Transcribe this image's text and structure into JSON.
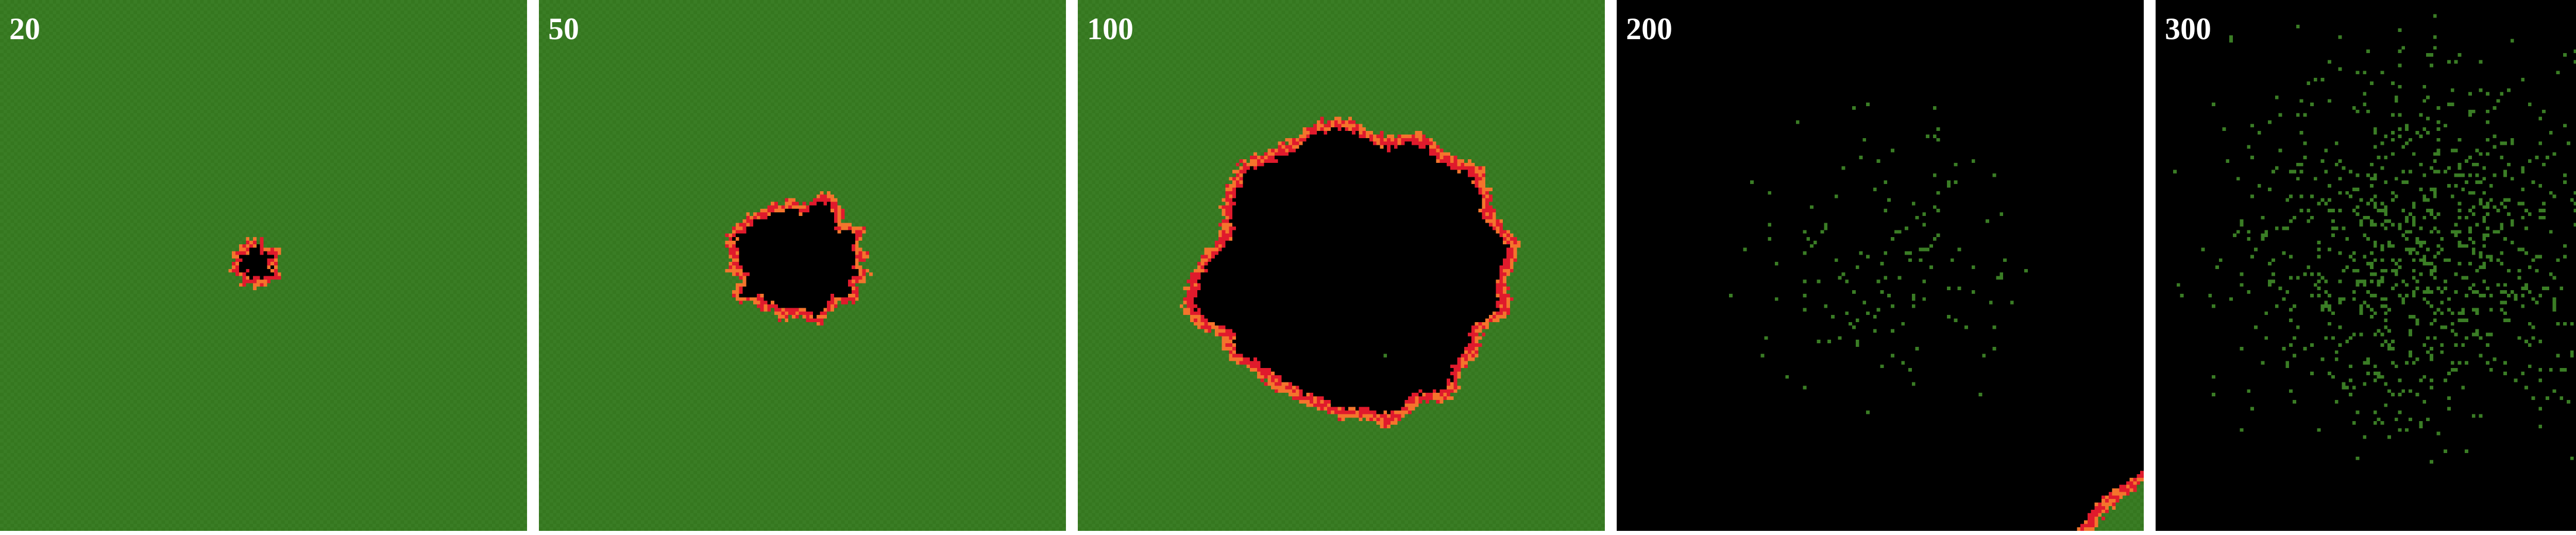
{
  "figure": {
    "colors": {
      "background": "#ffffff",
      "unburned": "#3a7d25",
      "unburned_alt": "#35771f",
      "burned": "#000000",
      "burning_core": "#e01a2c",
      "burning_edge": "#f4742c",
      "label": "#ffffff"
    },
    "panels": [
      {
        "label": "20"
      },
      {
        "label": "50"
      },
      {
        "label": "100"
      },
      {
        "label": "200"
      },
      {
        "label": "300"
      }
    ]
  }
}
